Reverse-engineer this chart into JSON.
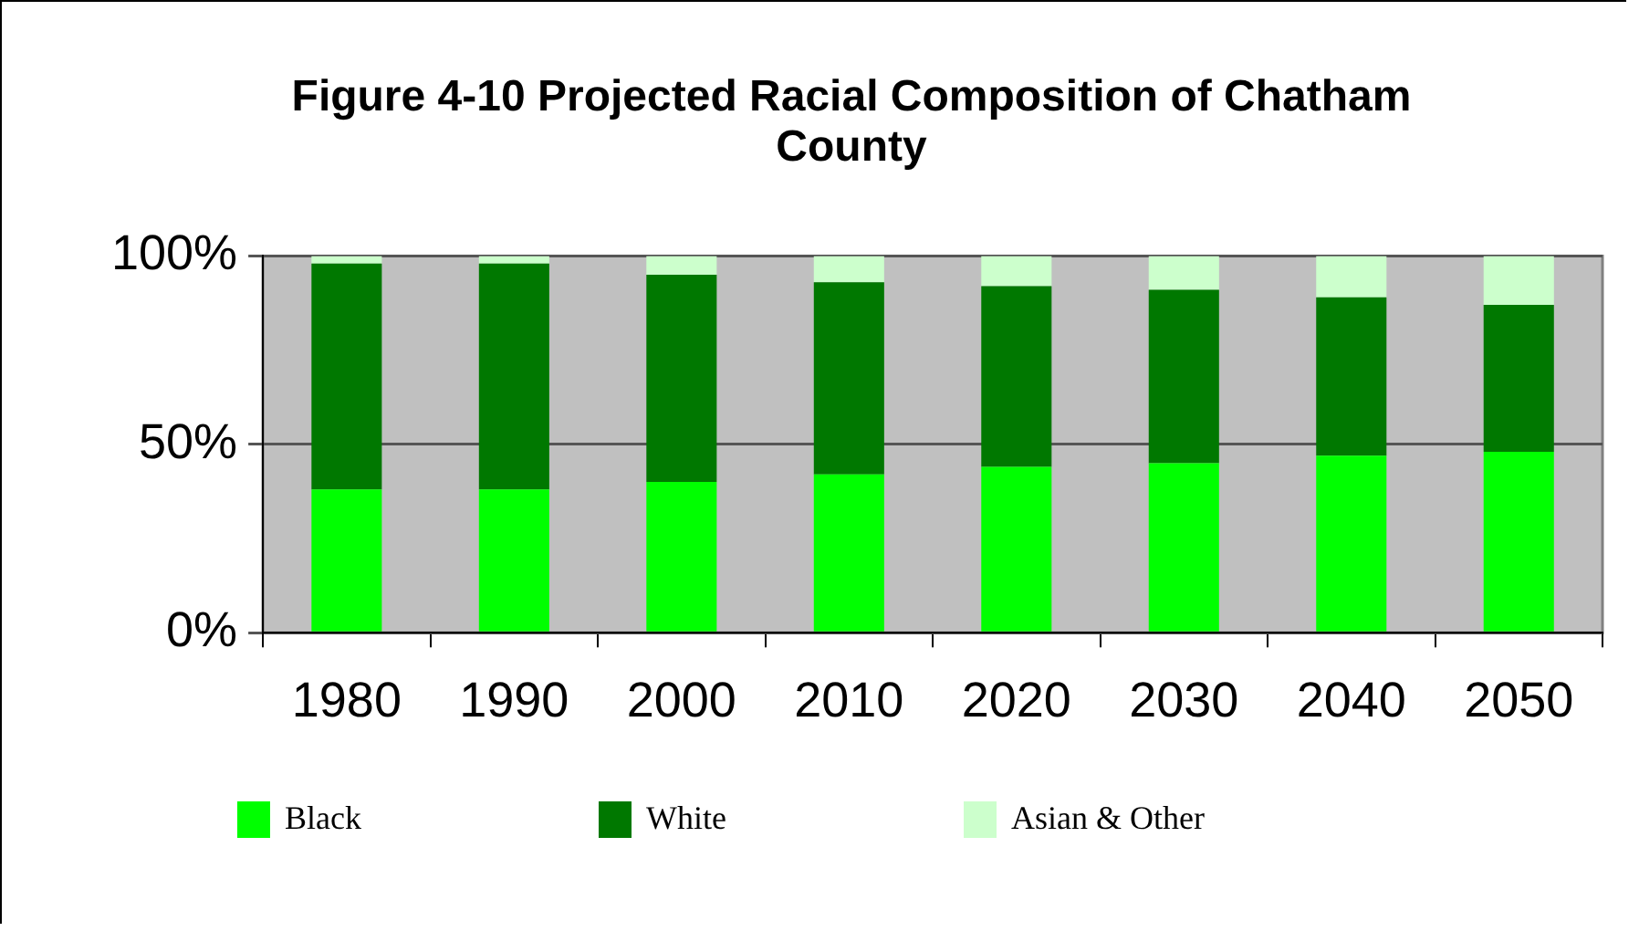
{
  "chart_data": {
    "type": "bar",
    "title": "Figure 4-10 Projected Racial Composition of Chatham County",
    "categories": [
      "1980",
      "1990",
      "2000",
      "2010",
      "2020",
      "2030",
      "2040",
      "2050"
    ],
    "stacked": true,
    "series": [
      {
        "name": "Black",
        "color": "#00ff00",
        "values": [
          38,
          38,
          40,
          42,
          44,
          45,
          47,
          48
        ]
      },
      {
        "name": "White",
        "color": "#007800",
        "values": [
          60,
          60,
          55,
          51,
          48,
          46,
          42,
          39
        ]
      },
      {
        "name": "Asian & Other",
        "color": "#ccffcc",
        "values": [
          2,
          2,
          5,
          7,
          8,
          9,
          11,
          13
        ]
      }
    ],
    "ylim": [
      0,
      100
    ],
    "yticks": [
      {
        "value": 0,
        "label": "0%"
      },
      {
        "value": 50,
        "label": "50%"
      },
      {
        "value": 100,
        "label": "100%"
      }
    ],
    "grid": "y",
    "legend": "bottom"
  }
}
